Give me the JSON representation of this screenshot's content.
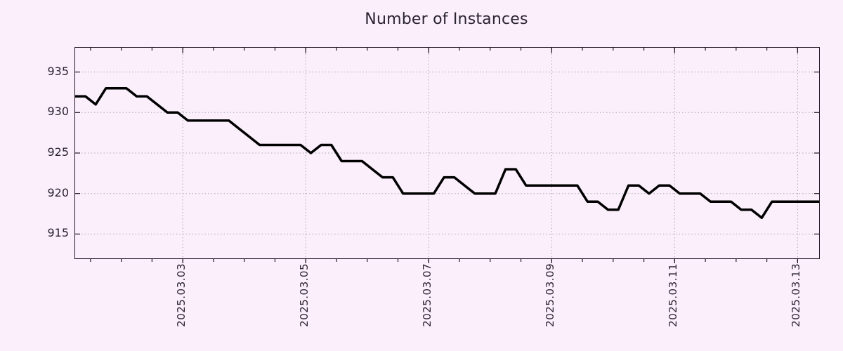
{
  "title": "Number of Instances",
  "colors": {
    "background": "#fbeffc",
    "line": "#000000",
    "grid": "#a8a8ad",
    "frame": "#261726",
    "text": "#2a2530"
  },
  "chart_data": {
    "type": "line",
    "title": "Number of Instances",
    "xlabel": "",
    "ylabel": "",
    "legend": "none",
    "grid": true,
    "ylim": [
      912,
      938
    ],
    "y_ticks": [
      915,
      920,
      925,
      930,
      935
    ],
    "x_tick_labels": [
      "2025.03.03",
      "2025.03.05",
      "2025.03.07",
      "2025.03.09",
      "2025.03.11",
      "2025.03.13"
    ],
    "x_tick_positions": [
      10.5,
      22.5,
      34.5,
      46.5,
      58.5,
      70.5
    ],
    "x_minor_tick_start": 1.5,
    "x_minor_tick_step": 3,
    "xlim": [
      0,
      72.6
    ],
    "sample_interval_hours": 4,
    "values": [
      932,
      932,
      931,
      933,
      933,
      933,
      932,
      932,
      931,
      930,
      930,
      929,
      929,
      929,
      929,
      929,
      928,
      927,
      926,
      926,
      926,
      926,
      926,
      925,
      926,
      926,
      924,
      924,
      924,
      923,
      922,
      922,
      920,
      920,
      920,
      920,
      922,
      922,
      921,
      920,
      920,
      920,
      923,
      923,
      921,
      921,
      921,
      921,
      921,
      921,
      919,
      919,
      918,
      918,
      921,
      921,
      920,
      921,
      921,
      920,
      920,
      920,
      919,
      919,
      919,
      918,
      918,
      917,
      919,
      919,
      919,
      919,
      919,
      919
    ]
  }
}
